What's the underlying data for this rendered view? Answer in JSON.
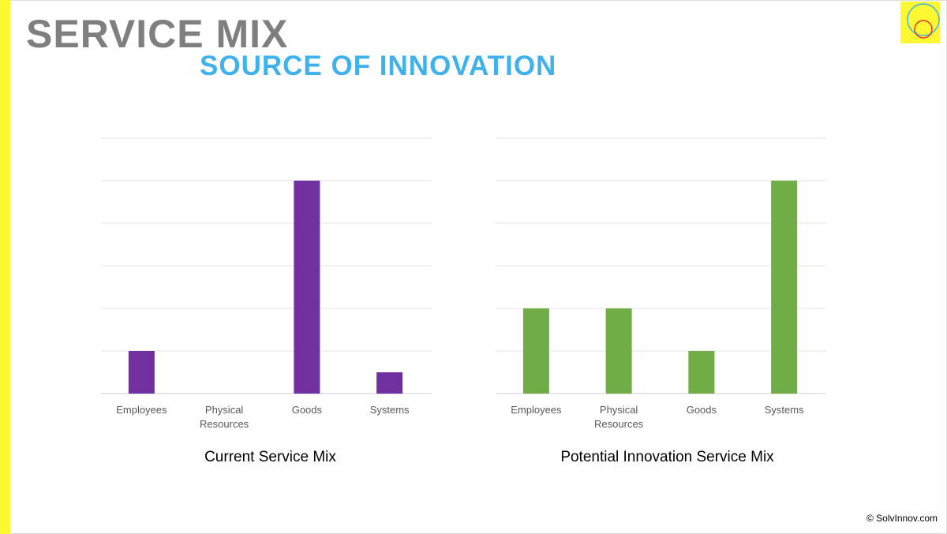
{
  "title": "SERVICE MIX",
  "subtitle": "SOURCE OF INNOVATION",
  "copyright": "© SolvInnov.com",
  "colors": {
    "left_bar": "#fef833",
    "current": "#7030a0",
    "potential": "#70ad47"
  },
  "chart_data": [
    {
      "type": "bar",
      "title": "Current Service Mix",
      "categories": [
        "Employees",
        "Physical Resources",
        "Goods",
        "Systems"
      ],
      "values": [
        1,
        0,
        5,
        0.5
      ],
      "ylim": [
        0,
        6
      ],
      "grid": true,
      "color": "#7030a0"
    },
    {
      "type": "bar",
      "title": "Potential Innovation Service Mix",
      "categories": [
        "Employees",
        "Physical Resources",
        "Goods",
        "Systems"
      ],
      "values": [
        2,
        2,
        1,
        5
      ],
      "ylim": [
        0,
        6
      ],
      "grid": true,
      "color": "#70ad47"
    }
  ]
}
